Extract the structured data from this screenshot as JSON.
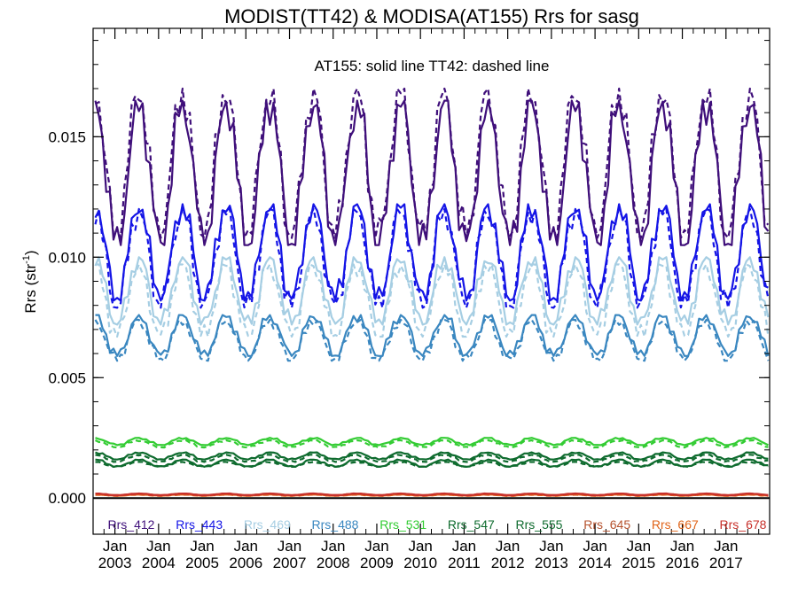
{
  "chart_data": {
    "type": "line",
    "title": "MODIST(TT42) & MODISA(AT155)  Rrs for sasg",
    "annotation": "AT155: solid line   TT42: dashed line",
    "ylabel": "Rrs (str",
    "ylabel_sup": "-1",
    "ylabel_close": ")",
    "ylim": [
      -0.0015,
      0.0195
    ],
    "xlim": [
      2002.5,
      2018.0
    ],
    "yticks": [
      0.0,
      0.005,
      0.01,
      0.015
    ],
    "ytick_labels": [
      "0.000",
      "0.005",
      "0.010",
      "0.015"
    ],
    "xticks": [
      2003,
      2004,
      2005,
      2006,
      2007,
      2008,
      2009,
      2010,
      2011,
      2012,
      2013,
      2014,
      2015,
      2016,
      2017
    ],
    "xtick_month_label": "Jan",
    "xtick_year_labels": [
      "2003",
      "2004",
      "2005",
      "2006",
      "2007",
      "2008",
      "2009",
      "2010",
      "2011",
      "2012",
      "2013",
      "2014",
      "2015",
      "2016",
      "2017"
    ],
    "grid": false,
    "legend_position": "bottom",
    "zero_line": true,
    "series": [
      {
        "name": "Rrs_412",
        "color": "#3f0f7a",
        "min": [
          0.0105,
          0.0108
        ],
        "max": [
          0.0165,
          0.017
        ]
      },
      {
        "name": "Rrs_443",
        "color": "#1414e6",
        "min": [
          0.0082,
          0.0079
        ],
        "max": [
          0.0122,
          0.012
        ]
      },
      {
        "name": "Rrs_469",
        "color": "#a6cee3",
        "min": [
          0.0072,
          0.0067
        ],
        "max": [
          0.01,
          0.0097
        ]
      },
      {
        "name": "Rrs_488",
        "color": "#3a87c0",
        "min": [
          0.0059,
          0.0057
        ],
        "max": [
          0.0076,
          0.0074
        ]
      },
      {
        "name": "Rrs_531",
        "color": "#33cc33",
        "min": [
          0.0022,
          0.0021
        ],
        "max": [
          0.0025,
          0.0024
        ]
      },
      {
        "name": "Rrs_547",
        "color": "#0e6b2e",
        "min": [
          0.0016,
          0.0015
        ],
        "max": [
          0.0019,
          0.0018
        ]
      },
      {
        "name": "Rrs_555",
        "color": "#0e6b2e",
        "min": [
          0.0013,
          0.0013
        ],
        "max": [
          0.0016,
          0.0015
        ]
      },
      {
        "name": "Rrs_645",
        "color": "#b5512c",
        "min": [
          0.00012,
          0.00011
        ],
        "max": [
          0.00018,
          0.00017
        ]
      },
      {
        "name": "Rrs_667",
        "color": "#e0641a",
        "min": [
          0.0001,
          9e-05
        ],
        "max": [
          0.00015,
          0.00014
        ]
      },
      {
        "name": "Rrs_678",
        "color": "#c8302a",
        "min": [
          0.00012,
          0.00011
        ],
        "max": [
          0.00019,
          0.00018
        ]
      }
    ]
  }
}
